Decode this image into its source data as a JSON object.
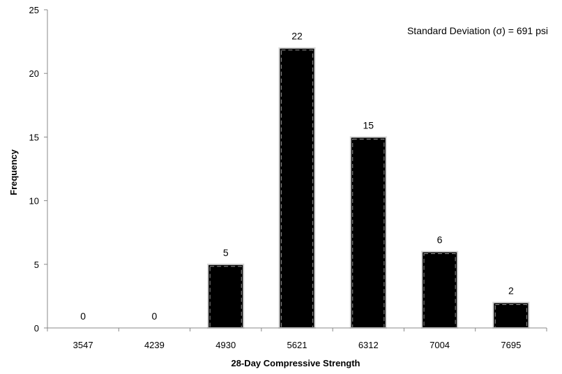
{
  "chart_data": {
    "type": "bar",
    "title": "",
    "xlabel": "28-Day Compressive Strength",
    "ylabel": "Frequency",
    "categories": [
      "3547",
      "4239",
      "4930",
      "5621",
      "6312",
      "7004",
      "7695"
    ],
    "values": [
      0,
      0,
      5,
      22,
      15,
      6,
      2
    ],
    "data_labels": [
      "0",
      "0",
      "5",
      "22",
      "15",
      "6",
      "2"
    ],
    "ylim": [
      0,
      25
    ],
    "yticks": [
      "0",
      "5",
      "10",
      "15",
      "20",
      "25"
    ],
    "annotation": "Standard Deviation (σ) = 691 psi",
    "grid": false,
    "legend": "none",
    "bar_color": "#000000",
    "bar_outline_color": "#ffffff"
  }
}
